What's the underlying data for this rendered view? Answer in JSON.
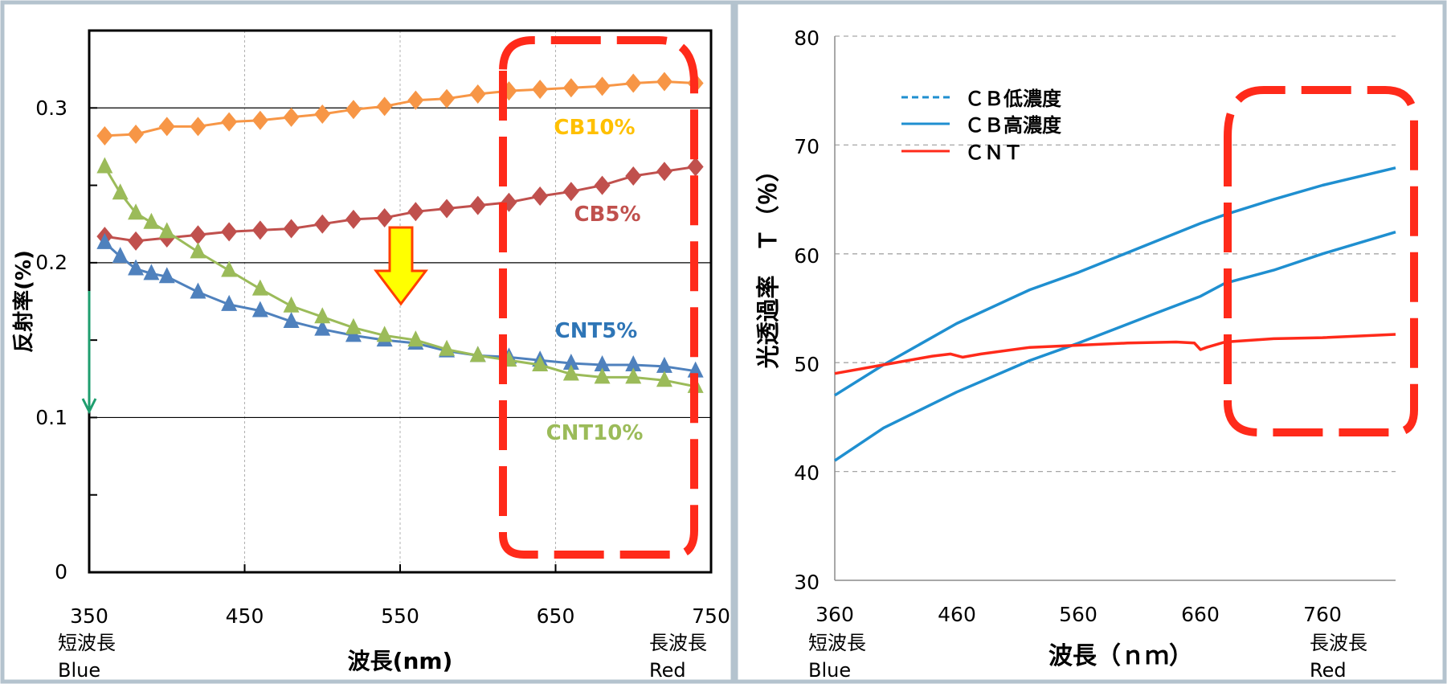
{
  "chart_data": [
    {
      "type": "line",
      "xlabel": "波長(nm)",
      "ylabel": "反射率(%)",
      "xlim": [
        350,
        750
      ],
      "ylim": [
        0,
        0.35
      ],
      "x_ticks": [
        "350",
        "450",
        "550",
        "650",
        "750"
      ],
      "y_ticks": [
        "0",
        "0.1",
        "0.2",
        "0.3"
      ],
      "grid": true,
      "x_notes": {
        "left": [
          "短波長",
          "Blue"
        ],
        "right": [
          "長波長",
          "Red"
        ]
      },
      "series": [
        {
          "name": "CB10%",
          "color": "#F79646",
          "marker": "diamond",
          "x": [
            360,
            380,
            400,
            420,
            440,
            460,
            480,
            500,
            520,
            540,
            560,
            580,
            600,
            620,
            640,
            660,
            680,
            700,
            720,
            740
          ],
          "y": [
            0.282,
            0.283,
            0.288,
            0.288,
            0.291,
            0.292,
            0.294,
            0.296,
            0.299,
            0.301,
            0.305,
            0.306,
            0.309,
            0.311,
            0.312,
            0.313,
            0.314,
            0.316,
            0.317,
            0.316
          ]
        },
        {
          "name": "CB5%",
          "color": "#C0504D",
          "marker": "diamond",
          "x": [
            360,
            380,
            400,
            420,
            440,
            460,
            480,
            500,
            520,
            540,
            560,
            580,
            600,
            620,
            640,
            660,
            680,
            700,
            720,
            740
          ],
          "y": [
            0.217,
            0.214,
            0.216,
            0.218,
            0.22,
            0.221,
            0.222,
            0.225,
            0.228,
            0.229,
            0.233,
            0.235,
            0.237,
            0.239,
            0.243,
            0.246,
            0.25,
            0.256,
            0.259,
            0.262
          ]
        },
        {
          "name": "CNT5%",
          "color": "#4F81BD",
          "marker": "triangle",
          "x": [
            360,
            370,
            380,
            390,
            400,
            420,
            440,
            460,
            480,
            500,
            520,
            540,
            560,
            580,
            600,
            620,
            640,
            660,
            680,
            700,
            720,
            740
          ],
          "y": [
            0.213,
            0.204,
            0.196,
            0.193,
            0.191,
            0.181,
            0.173,
            0.169,
            0.162,
            0.157,
            0.153,
            0.15,
            0.148,
            0.143,
            0.14,
            0.139,
            0.137,
            0.135,
            0.134,
            0.134,
            0.133,
            0.13
          ]
        },
        {
          "name": "CNT10%",
          "color": "#9BBB59",
          "marker": "triangle",
          "x": [
            360,
            370,
            380,
            390,
            400,
            420,
            440,
            460,
            480,
            500,
            520,
            540,
            560,
            580,
            600,
            620,
            640,
            660,
            680,
            700,
            720,
            740
          ],
          "y": [
            0.262,
            0.245,
            0.232,
            0.226,
            0.22,
            0.207,
            0.195,
            0.183,
            0.172,
            0.165,
            0.158,
            0.153,
            0.15,
            0.144,
            0.14,
            0.137,
            0.134,
            0.128,
            0.126,
            0.126,
            0.124,
            0.12
          ]
        }
      ]
    },
    {
      "type": "line",
      "xlabel": "波長（ｎｍ）",
      "ylabel": "光透過率　Ｔ（％）",
      "xlim": [
        360,
        820
      ],
      "ylim": [
        30,
        80
      ],
      "x_ticks": [
        "360",
        "460",
        "560",
        "660",
        "760"
      ],
      "y_ticks": [
        "30",
        "40",
        "50",
        "60",
        "70",
        "80"
      ],
      "grid": true,
      "legend": "top-left",
      "x_notes": {
        "left": [
          "短波長",
          "Blue"
        ],
        "right": [
          "長波長",
          "Red"
        ]
      },
      "series": [
        {
          "name": "ＣＢ低濃度",
          "color": "#1F8FD0",
          "dash": true,
          "x": [
            360,
            400,
            460,
            520,
            560,
            620,
            660,
            680,
            720,
            760,
            820
          ],
          "y": [
            47.0,
            49.8,
            53.6,
            56.7,
            58.3,
            61.0,
            62.8,
            63.6,
            65.0,
            66.3,
            67.9
          ]
        },
        {
          "name": "ＣＢ高濃度",
          "color": "#1F8FD0",
          "dash": false,
          "x": [
            360,
            400,
            460,
            520,
            560,
            620,
            660,
            680,
            720,
            760,
            820
          ],
          "y": [
            41.0,
            44.0,
            47.3,
            50.2,
            51.8,
            54.4,
            56.1,
            57.3,
            58.5,
            60.0,
            62.0
          ]
        },
        {
          "name": "ＣＮＴ",
          "color": "#FF2A1A",
          "dash": false,
          "x": [
            360,
            400,
            440,
            455,
            465,
            480,
            520,
            560,
            600,
            640,
            655,
            660,
            665,
            680,
            720,
            760,
            820
          ],
          "y": [
            49.0,
            49.8,
            50.6,
            50.8,
            50.5,
            50.8,
            51.4,
            51.6,
            51.8,
            51.9,
            51.8,
            51.2,
            51.4,
            51.9,
            52.2,
            52.3,
            52.6
          ]
        }
      ]
    }
  ]
}
